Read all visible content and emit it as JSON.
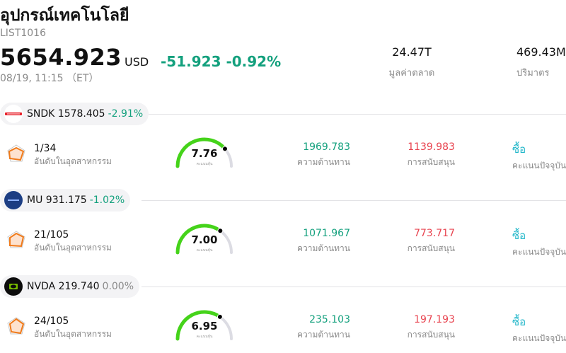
{
  "header": {
    "title": "อุปกรณ์เทคโนโลยี",
    "code": "LIST1016",
    "price": "5654.923",
    "currency": "USD",
    "change": "-51.923",
    "change_pct": "-0.92%",
    "time": "08/19, 11:15 （ET）"
  },
  "stats": {
    "market_cap_value": "24.47T",
    "market_cap_label": "มูลค่าตลาด",
    "volume_value": "469.43M",
    "volume_label": "ปริมาตร"
  },
  "labels": {
    "rank_label": "อันดับในอุตสาหกรรม",
    "resistance_label": "ความต้านทาน",
    "support_label": "การสนับสนุน",
    "rating_label": "คะแนนปัจจุบัน",
    "gauge_sub": "คะแนนหุ้น"
  },
  "colors": {
    "up": "#13a07d",
    "down": "#e8434f",
    "gauge": "#45d31a",
    "accent": "#1fb6c9"
  },
  "stocks": [
    {
      "symbol": "SNDK",
      "price": "1578.405",
      "change_pct": "-2.91%",
      "logo": "sandisk-logo",
      "rank": "1/34",
      "score": "7.76",
      "score_fraction": 0.776,
      "resistance": "1969.783",
      "support": "1139.983",
      "rating": "ซื้อ"
    },
    {
      "symbol": "MU",
      "price": "931.175",
      "change_pct": "-1.02%",
      "logo": "micron-logo",
      "rank": "21/105",
      "score": "7.00",
      "score_fraction": 0.7,
      "resistance": "1071.967",
      "support": "773.717",
      "rating": "ซื้อ"
    },
    {
      "symbol": "NVDA",
      "price": "219.740",
      "change_pct": "0.00%",
      "logo": "nvidia-logo",
      "rank": "24/105",
      "score": "6.95",
      "score_fraction": 0.695,
      "resistance": "235.103",
      "support": "197.193",
      "rating": "ซื้อ"
    }
  ]
}
